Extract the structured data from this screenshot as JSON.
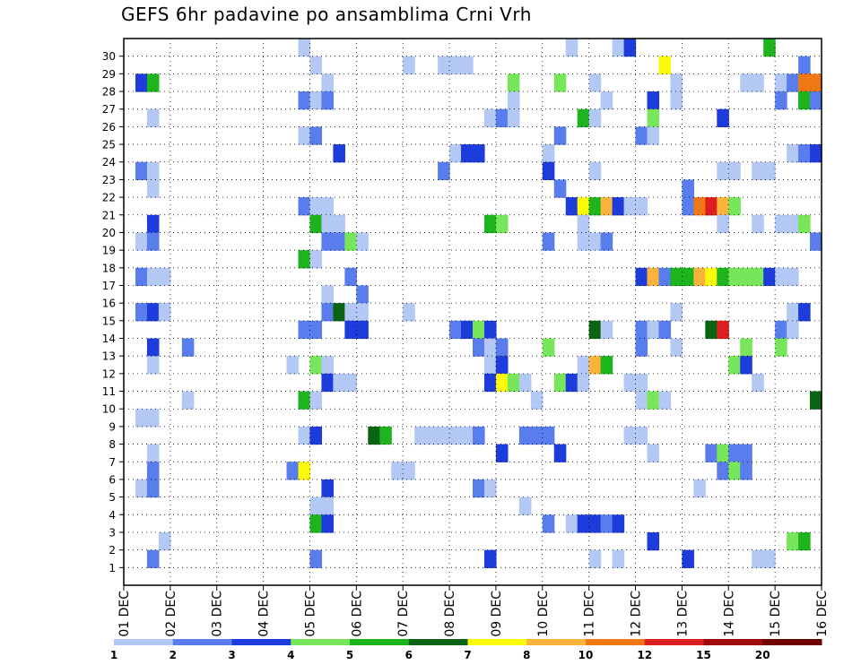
{
  "chart_data": {
    "type": "heatmap",
    "title": "GEFS 6hr padavine po ansamblima Crni Vrh",
    "xlabel": "",
    "ylabel": "",
    "x_tick_labels": [
      "01 DEC",
      "02 DEC",
      "03 DEC",
      "04 DEC",
      "05 DEC",
      "06 DEC",
      "07 DEC",
      "08 DEC",
      "09 DEC",
      "10 DEC",
      "11 DEC",
      "12 DEC",
      "13 DEC",
      "14 DEC",
      "15 DEC",
      "16 DEC"
    ],
    "y_tick_labels": [
      "1",
      "2",
      "3",
      "4",
      "5",
      "6",
      "7",
      "8",
      "9",
      "10",
      "11",
      "12",
      "13",
      "14",
      "15",
      "16",
      "17",
      "18",
      "19",
      "20",
      "21",
      "22",
      "23",
      "24",
      "25",
      "26",
      "27",
      "28",
      "29",
      "30"
    ],
    "members": 31,
    "steps": 60,
    "x_unit": "6-hour steps from 01 DEC 00Z",
    "grid": "dotted",
    "legend": {
      "position": "bottom",
      "colors": [
        "#b4c8f5",
        "#5a7dee",
        "#1e3cdc",
        "#78e65a",
        "#1eb41e",
        "#0a6414",
        "#fafa0a",
        "#fab43c",
        "#f07814",
        "#dc1e1e",
        "#a00a0a",
        "#6e0000"
      ],
      "labels": [
        "1",
        "2",
        "3",
        "4",
        "5",
        "6",
        "7",
        "8",
        "10",
        "12",
        "15",
        "20"
      ]
    },
    "cells": [
      [
        30,
        15,
        1
      ],
      [
        30,
        38,
        1
      ],
      [
        30,
        42,
        1
      ],
      [
        30,
        43,
        3
      ],
      [
        30,
        55,
        5
      ],
      [
        29,
        16,
        1
      ],
      [
        29,
        24,
        1
      ],
      [
        29,
        27,
        1
      ],
      [
        29,
        28,
        1
      ],
      [
        29,
        29,
        1
      ],
      [
        29,
        46,
        7
      ],
      [
        29,
        58,
        2
      ],
      [
        28,
        1,
        3
      ],
      [
        28,
        2,
        5
      ],
      [
        28,
        17,
        1
      ],
      [
        28,
        33,
        4
      ],
      [
        28,
        37,
        4
      ],
      [
        28,
        40,
        1
      ],
      [
        28,
        47,
        1
      ],
      [
        28,
        53,
        1
      ],
      [
        28,
        54,
        1
      ],
      [
        28,
        56,
        1
      ],
      [
        28,
        57,
        2
      ],
      [
        28,
        58,
        9
      ],
      [
        28,
        59,
        9
      ],
      [
        27,
        15,
        2
      ],
      [
        27,
        16,
        1
      ],
      [
        27,
        17,
        2
      ],
      [
        27,
        33,
        1
      ],
      [
        27,
        41,
        1
      ],
      [
        27,
        45,
        3
      ],
      [
        27,
        47,
        1
      ],
      [
        27,
        56,
        2
      ],
      [
        27,
        58,
        5
      ],
      [
        27,
        59,
        2
      ],
      [
        26,
        2,
        1
      ],
      [
        26,
        31,
        1
      ],
      [
        26,
        32,
        2
      ],
      [
        26,
        33,
        1
      ],
      [
        26,
        39,
        5
      ],
      [
        26,
        40,
        1
      ],
      [
        26,
        45,
        4
      ],
      [
        26,
        51,
        3
      ],
      [
        25,
        15,
        1
      ],
      [
        25,
        16,
        2
      ],
      [
        25,
        37,
        2
      ],
      [
        25,
        44,
        2
      ],
      [
        25,
        45,
        1
      ],
      [
        24,
        18,
        3
      ],
      [
        24,
        28,
        1
      ],
      [
        24,
        29,
        3
      ],
      [
        24,
        30,
        3
      ],
      [
        24,
        36,
        1
      ],
      [
        24,
        57,
        1
      ],
      [
        24,
        58,
        2
      ],
      [
        24,
        59,
        3
      ],
      [
        23,
        1,
        2
      ],
      [
        23,
        2,
        1
      ],
      [
        23,
        27,
        2
      ],
      [
        23,
        36,
        3
      ],
      [
        23,
        40,
        1
      ],
      [
        23,
        51,
        1
      ],
      [
        23,
        52,
        1
      ],
      [
        23,
        54,
        1
      ],
      [
        23,
        55,
        1
      ],
      [
        22,
        2,
        1
      ],
      [
        22,
        37,
        2
      ],
      [
        22,
        48,
        2
      ],
      [
        21,
        15,
        2
      ],
      [
        21,
        16,
        1
      ],
      [
        21,
        17,
        1
      ],
      [
        21,
        38,
        3
      ],
      [
        21,
        39,
        7
      ],
      [
        21,
        40,
        5
      ],
      [
        21,
        41,
        8
      ],
      [
        21,
        42,
        3
      ],
      [
        21,
        43,
        1
      ],
      [
        21,
        44,
        1
      ],
      [
        21,
        48,
        2
      ],
      [
        21,
        49,
        9
      ],
      [
        21,
        50,
        10
      ],
      [
        21,
        51,
        8
      ],
      [
        21,
        52,
        4
      ],
      [
        20,
        2,
        3
      ],
      [
        20,
        16,
        5
      ],
      [
        20,
        17,
        1
      ],
      [
        20,
        18,
        1
      ],
      [
        20,
        31,
        5
      ],
      [
        20,
        32,
        4
      ],
      [
        20,
        39,
        1
      ],
      [
        20,
        51,
        1
      ],
      [
        20,
        54,
        1
      ],
      [
        20,
        56,
        1
      ],
      [
        20,
        57,
        1
      ],
      [
        20,
        58,
        4
      ],
      [
        19,
        1,
        1
      ],
      [
        19,
        2,
        2
      ],
      [
        19,
        17,
        2
      ],
      [
        19,
        18,
        2
      ],
      [
        19,
        19,
        4
      ],
      [
        19,
        20,
        1
      ],
      [
        19,
        36,
        2
      ],
      [
        19,
        39,
        1
      ],
      [
        19,
        40,
        1
      ],
      [
        19,
        41,
        2
      ],
      [
        19,
        59,
        2
      ],
      [
        18,
        15,
        5
      ],
      [
        18,
        16,
        1
      ],
      [
        17,
        1,
        2
      ],
      [
        17,
        2,
        1
      ],
      [
        17,
        3,
        1
      ],
      [
        17,
        19,
        2
      ],
      [
        17,
        44,
        3
      ],
      [
        17,
        45,
        8
      ],
      [
        17,
        46,
        2
      ],
      [
        17,
        47,
        5
      ],
      [
        17,
        48,
        5
      ],
      [
        17,
        49,
        8
      ],
      [
        17,
        50,
        7
      ],
      [
        17,
        51,
        5
      ],
      [
        17,
        52,
        4
      ],
      [
        17,
        53,
        4
      ],
      [
        17,
        54,
        4
      ],
      [
        17,
        55,
        3
      ],
      [
        17,
        56,
        1
      ],
      [
        17,
        57,
        1
      ],
      [
        16,
        17,
        1
      ],
      [
        16,
        20,
        2
      ],
      [
        15,
        1,
        2
      ],
      [
        15,
        2,
        3
      ],
      [
        15,
        3,
        1
      ],
      [
        15,
        17,
        2
      ],
      [
        15,
        18,
        6
      ],
      [
        15,
        19,
        1
      ],
      [
        15,
        20,
        1
      ],
      [
        15,
        24,
        1
      ],
      [
        15,
        47,
        1
      ],
      [
        15,
        57,
        1
      ],
      [
        15,
        58,
        3
      ],
      [
        14,
        15,
        2
      ],
      [
        14,
        16,
        2
      ],
      [
        14,
        19,
        3
      ],
      [
        14,
        20,
        3
      ],
      [
        14,
        28,
        2
      ],
      [
        14,
        29,
        3
      ],
      [
        14,
        30,
        4
      ],
      [
        14,
        31,
        3
      ],
      [
        14,
        40,
        6
      ],
      [
        14,
        41,
        1
      ],
      [
        14,
        44,
        2
      ],
      [
        14,
        45,
        1
      ],
      [
        14,
        46,
        2
      ],
      [
        14,
        50,
        6
      ],
      [
        14,
        51,
        10
      ],
      [
        14,
        56,
        2
      ],
      [
        14,
        57,
        1
      ],
      [
        13,
        2,
        3
      ],
      [
        13,
        5,
        2
      ],
      [
        13,
        30,
        2
      ],
      [
        13,
        31,
        1
      ],
      [
        13,
        32,
        2
      ],
      [
        13,
        36,
        4
      ],
      [
        13,
        44,
        2
      ],
      [
        13,
        47,
        1
      ],
      [
        13,
        53,
        4
      ],
      [
        13,
        56,
        4
      ],
      [
        12,
        2,
        1
      ],
      [
        12,
        14,
        1
      ],
      [
        12,
        16,
        4
      ],
      [
        12,
        17,
        1
      ],
      [
        12,
        31,
        1
      ],
      [
        12,
        32,
        3
      ],
      [
        12,
        39,
        1
      ],
      [
        12,
        40,
        8
      ],
      [
        12,
        41,
        5
      ],
      [
        12,
        52,
        4
      ],
      [
        12,
        53,
        3
      ],
      [
        11,
        17,
        3
      ],
      [
        11,
        18,
        1
      ],
      [
        11,
        19,
        1
      ],
      [
        11,
        31,
        3
      ],
      [
        11,
        32,
        7
      ],
      [
        11,
        33,
        4
      ],
      [
        11,
        34,
        1
      ],
      [
        11,
        37,
        4
      ],
      [
        11,
        38,
        3
      ],
      [
        11,
        39,
        1
      ],
      [
        11,
        43,
        1
      ],
      [
        11,
        44,
        1
      ],
      [
        11,
        54,
        1
      ],
      [
        10,
        5,
        1
      ],
      [
        10,
        15,
        5
      ],
      [
        10,
        16,
        1
      ],
      [
        10,
        35,
        1
      ],
      [
        10,
        44,
        1
      ],
      [
        10,
        45,
        4
      ],
      [
        10,
        46,
        1
      ],
      [
        10,
        59,
        6
      ],
      [
        9,
        1,
        1
      ],
      [
        9,
        2,
        1
      ],
      [
        8,
        15,
        1
      ],
      [
        8,
        16,
        3
      ],
      [
        8,
        21,
        6
      ],
      [
        8,
        22,
        5
      ],
      [
        8,
        25,
        1
      ],
      [
        8,
        26,
        1
      ],
      [
        8,
        27,
        1
      ],
      [
        8,
        28,
        1
      ],
      [
        8,
        29,
        1
      ],
      [
        8,
        30,
        2
      ],
      [
        8,
        34,
        2
      ],
      [
        8,
        35,
        2
      ],
      [
        8,
        36,
        2
      ],
      [
        8,
        43,
        1
      ],
      [
        8,
        44,
        1
      ],
      [
        7,
        2,
        1
      ],
      [
        7,
        32,
        3
      ],
      [
        7,
        37,
        3
      ],
      [
        7,
        45,
        1
      ],
      [
        7,
        50,
        2
      ],
      [
        7,
        51,
        4
      ],
      [
        7,
        52,
        2
      ],
      [
        7,
        53,
        2
      ],
      [
        6,
        2,
        2
      ],
      [
        6,
        14,
        2
      ],
      [
        6,
        15,
        7
      ],
      [
        6,
        23,
        1
      ],
      [
        6,
        24,
        1
      ],
      [
        6,
        51,
        2
      ],
      [
        6,
        52,
        4
      ],
      [
        6,
        53,
        2
      ],
      [
        5,
        1,
        1
      ],
      [
        5,
        2,
        2
      ],
      [
        5,
        17,
        3
      ],
      [
        5,
        30,
        2
      ],
      [
        5,
        31,
        1
      ],
      [
        5,
        49,
        1
      ],
      [
        4,
        16,
        1
      ],
      [
        4,
        17,
        1
      ],
      [
        4,
        34,
        1
      ],
      [
        3,
        16,
        5
      ],
      [
        3,
        17,
        3
      ],
      [
        3,
        36,
        2
      ],
      [
        3,
        38,
        1
      ],
      [
        3,
        39,
        3
      ],
      [
        3,
        40,
        3
      ],
      [
        3,
        41,
        2
      ],
      [
        3,
        42,
        3
      ],
      [
        2,
        3,
        1
      ],
      [
        2,
        45,
        3
      ],
      [
        2,
        57,
        4
      ],
      [
        2,
        58,
        5
      ],
      [
        1,
        2,
        2
      ],
      [
        1,
        16,
        2
      ],
      [
        1,
        31,
        3
      ],
      [
        1,
        40,
        1
      ],
      [
        1,
        42,
        1
      ],
      [
        1,
        48,
        3
      ],
      [
        1,
        54,
        1
      ],
      [
        1,
        55,
        1
      ]
    ]
  }
}
